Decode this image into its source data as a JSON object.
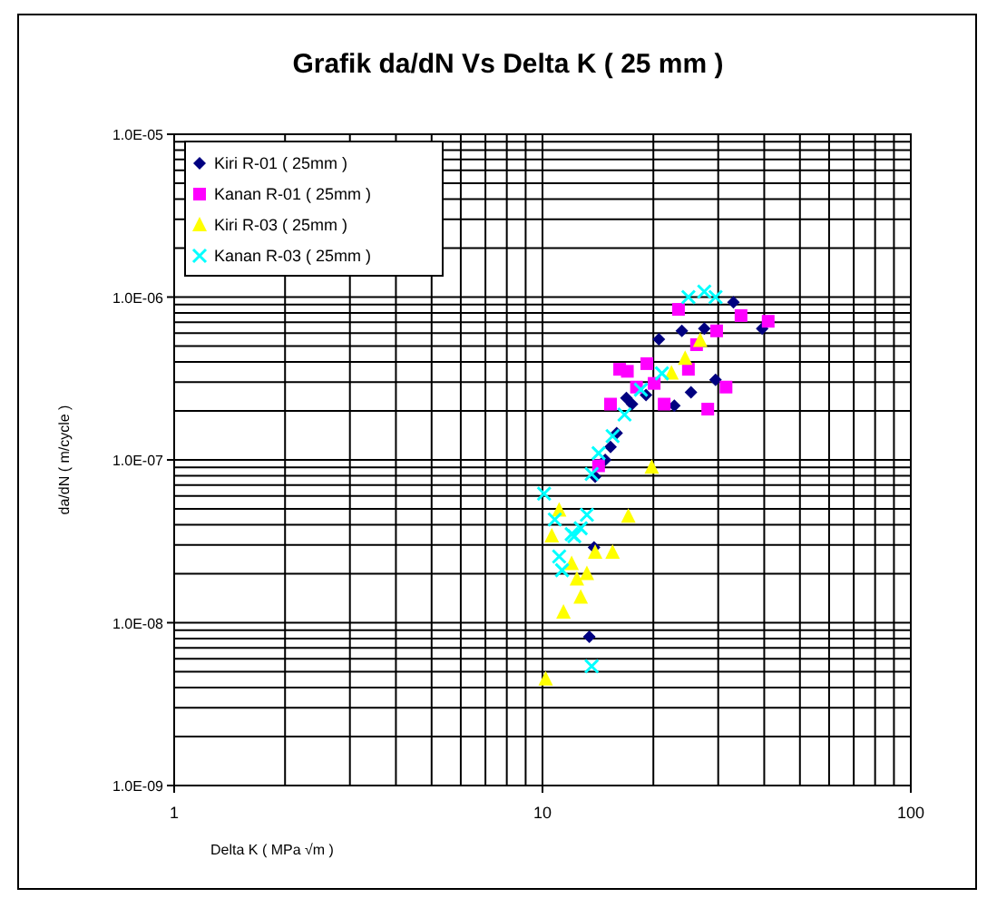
{
  "chart_data": {
    "type": "scatter",
    "title": "Grafik da/dN Vs Delta K ( 25 mm )",
    "xlabel": "Delta K ( MPa √m )",
    "ylabel": "da/dN ( m/cycle )",
    "log": "xy",
    "grid": true,
    "legend": "top left",
    "xlim": [
      1,
      100
    ],
    "xticks": [
      1,
      10,
      100
    ],
    "ylim": [
      1e-09,
      1e-05
    ],
    "yticks": [
      {
        "value": 1e-09,
        "label": "1.0E-09"
      },
      {
        "value": 1e-08,
        "label": "1.0E-08"
      },
      {
        "value": 1e-07,
        "label": "1.0E-07"
      },
      {
        "value": 1e-06,
        "label": "1.0E-06"
      },
      {
        "value": 1e-05,
        "label": "1.0E-05"
      }
    ],
    "series": [
      {
        "name": "Kiri R-01 ( 25mm )",
        "color": "#000080",
        "marker": "diamond",
        "x": [
          33.0,
          39.5,
          23.9,
          27.5,
          20.7,
          29.5,
          25.3,
          22.8,
          19.1,
          16.9,
          17.5,
          15.9,
          15.3,
          14.8,
          13.9,
          13.4,
          13.8
        ],
        "values": [
          9.3e-07,
          6.4e-07,
          6.2e-07,
          6.4e-07,
          5.5e-07,
          3.1e-07,
          2.6e-07,
          2.15e-07,
          2.5e-07,
          2.4e-07,
          2.2e-07,
          1.46e-07,
          1.2e-07,
          1e-07,
          7.9e-08,
          8.2e-09,
          2.9e-08
        ]
      },
      {
        "name": "Kanan R-01 ( 25mm )",
        "color": "#ff00ff",
        "marker": "square",
        "x": [
          23.4,
          34.6,
          41.0,
          29.7,
          26.2,
          24.9,
          19.2,
          16.2,
          17.0,
          20.1,
          18.0,
          31.5,
          21.4,
          15.3,
          28.1,
          14.2
        ],
        "values": [
          8.4e-07,
          7.7e-07,
          7.1e-07,
          6.2e-07,
          5.1e-07,
          3.6e-07,
          3.9e-07,
          3.6e-07,
          3.5e-07,
          2.95e-07,
          2.8e-07,
          2.8e-07,
          2.2e-07,
          2.2e-07,
          2.05e-07,
          9.2e-08
        ]
      },
      {
        "name": "Kiri R-03 ( 25mm )",
        "color": "#ffff00",
        "marker": "triangle",
        "x": [
          26.8,
          24.4,
          22.4,
          19.8,
          17.1,
          11.1,
          10.6,
          13.9,
          15.5,
          12.0,
          13.2,
          12.4,
          12.7,
          11.4,
          10.2
        ],
        "values": [
          5.4e-07,
          4.2e-07,
          3.4e-07,
          9e-08,
          4.5e-08,
          4.9e-08,
          3.4e-08,
          2.7e-08,
          2.7e-08,
          2.3e-08,
          2e-08,
          1.85e-08,
          1.43e-08,
          1.16e-08,
          4.5e-09
        ]
      },
      {
        "name": "Kanan R-03 ( 25mm )",
        "color": "#00ffff",
        "marker": "cross",
        "x": [
          24.9,
          27.5,
          29.5,
          21.1,
          18.5,
          16.7,
          15.5,
          14.2,
          13.6,
          10.1,
          13.2,
          10.8,
          12.7,
          12.0,
          12.2,
          11.1,
          11.3,
          13.6
        ],
        "values": [
          1e-06,
          1.08e-06,
          1e-06,
          3.4e-07,
          2.7e-07,
          1.9e-07,
          1.4e-07,
          1.1e-07,
          8.2e-08,
          6.2e-08,
          4.6e-08,
          4.3e-08,
          3.8e-08,
          3.5e-08,
          3.4e-08,
          2.55e-08,
          2.1e-08,
          5.4e-09
        ]
      }
    ]
  }
}
